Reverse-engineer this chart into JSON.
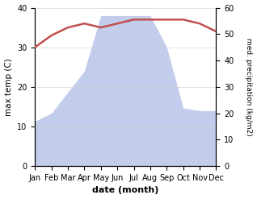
{
  "months": [
    "Jan",
    "Feb",
    "Mar",
    "Apr",
    "May",
    "Jun",
    "Jul",
    "Aug",
    "Sep",
    "Oct",
    "Nov",
    "Dec"
  ],
  "temperature": [
    30,
    33,
    35,
    36,
    35,
    36,
    37,
    37,
    37,
    37,
    36,
    34
  ],
  "precipitation": [
    17,
    20,
    28,
    36,
    57,
    57,
    57,
    57,
    45,
    22,
    21,
    21
  ],
  "temp_color": "#c0504d",
  "precip_color_fill": "#b8c4e8",
  "ylabel_left": "max temp (C)",
  "ylabel_right": "med. precipitation (kg/m2)",
  "xlabel": "date (month)",
  "ylim_left": [
    0,
    40
  ],
  "ylim_right": [
    0,
    60
  ],
  "yticks_left": [
    0,
    10,
    20,
    30,
    40
  ],
  "yticks_right": [
    0,
    10,
    20,
    30,
    40,
    50,
    60
  ]
}
